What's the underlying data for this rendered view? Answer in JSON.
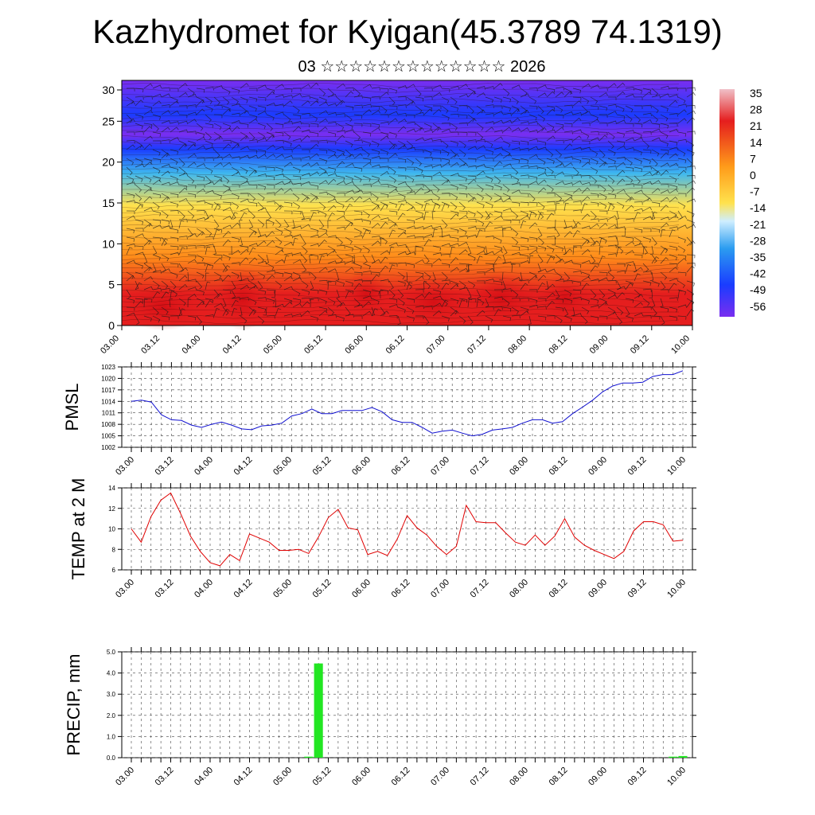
{
  "header": {
    "title": "Kazhydromet for Kyigan(45.3789 74.1319)",
    "subtitle": "03 ☆☆☆☆☆☆☆☆☆☆☆☆☆ 2026"
  },
  "time_labels": [
    "03.00",
    "03.12",
    "04.00",
    "04.12",
    "05.00",
    "05.12",
    "06.00",
    "06.12",
    "07.00",
    "07.12",
    "08.00",
    "08.12",
    "09.00",
    "09.12",
    "10.00"
  ],
  "chart_data": [
    {
      "type": "heatmap",
      "name": "cross-section",
      "ylim": [
        0,
        30
      ],
      "yticks": [
        "0",
        "5",
        "10",
        "15",
        "20",
        "25",
        "30"
      ],
      "colorbar_labels": [
        "35",
        "28",
        "21",
        "14",
        "7",
        "0",
        "-7",
        "-14",
        "-21",
        "-28",
        "-35",
        "-42",
        "-49",
        "-56"
      ],
      "colors": {
        "warm": "#e51e1e",
        "orange": "#ff8c1a",
        "yellow": "#ffe24d",
        "cyan": "#3fb8ef",
        "blue": "#1a3cff",
        "violet": "#7a2ef0"
      }
    },
    {
      "type": "line",
      "name": "pmsl",
      "ylabel": "PMSL",
      "ylim": [
        1002,
        1023
      ],
      "yticks": [
        "1002",
        "1005",
        "1008",
        "1011",
        "1014",
        "1017",
        "1020",
        "1023"
      ],
      "color": "#1010d0",
      "values": [
        1014,
        1014.3,
        1013.8,
        1010.5,
        1009.2,
        1009,
        1007.8,
        1007.2,
        1008,
        1008.6,
        1007.8,
        1006.8,
        1006.6,
        1007.6,
        1007.8,
        1008.3,
        1010.2,
        1010.8,
        1012,
        1010.8,
        1010.8,
        1011.6,
        1011.6,
        1011.6,
        1012.4,
        1011.3,
        1009.2,
        1008.5,
        1008.5,
        1007.2,
        1005.7,
        1006.2,
        1006.5,
        1005.7,
        1005,
        1005.4,
        1006.5,
        1006.8,
        1007.2,
        1008.3,
        1009.2,
        1009.2,
        1008.3,
        1008.7,
        1010.8,
        1012.5,
        1014.3,
        1016.5,
        1018,
        1018.8,
        1018.8,
        1019,
        1020.5,
        1021,
        1021,
        1022
      ]
    },
    {
      "type": "line",
      "name": "temp",
      "ylabel": "TEMP at 2 M",
      "ylim": [
        6,
        14
      ],
      "yticks": [
        "6",
        "8",
        "10",
        "12",
        "14"
      ],
      "color": "#e00000",
      "values": [
        10,
        8.7,
        11.2,
        12.8,
        13.5,
        11.5,
        9.3,
        7.8,
        6.7,
        6.4,
        7.5,
        6.9,
        9.5,
        9.1,
        8.7,
        7.9,
        7.9,
        8,
        7.6,
        9.2,
        11.1,
        11.9,
        10.1,
        9.9,
        7.5,
        7.8,
        7.4,
        9,
        11.3,
        10.1,
        9.4,
        8.3,
        7.5,
        8.3,
        12.3,
        10.7,
        10.6,
        10.6,
        9.6,
        8.7,
        8.4,
        9.4,
        8.4,
        9.3,
        11,
        9.2,
        8.4,
        7.9,
        7.5,
        7.1,
        7.8,
        9.8,
        10.7,
        10.7,
        10.4,
        8.8,
        8.9
      ]
    },
    {
      "type": "bar",
      "name": "precip",
      "ylabel": "PRECIP, mm",
      "ylim": [
        0,
        5
      ],
      "yticks": [
        "0.0",
        "1.0",
        "2.0",
        "3.0",
        "4.0",
        "5.0"
      ],
      "color": "#22e622",
      "values": [
        0,
        0,
        0,
        0,
        0,
        0,
        0,
        0,
        0,
        0,
        0,
        0,
        0,
        0,
        0,
        0,
        0,
        0,
        0.05,
        4.45,
        0,
        0,
        0,
        0,
        0,
        0,
        0,
        0,
        0,
        0,
        0,
        0,
        0,
        0,
        0,
        0,
        0,
        0,
        0,
        0,
        0,
        0,
        0,
        0,
        0,
        0,
        0,
        0,
        0,
        0,
        0,
        0,
        0,
        0,
        0,
        0.05,
        0.08
      ]
    }
  ]
}
